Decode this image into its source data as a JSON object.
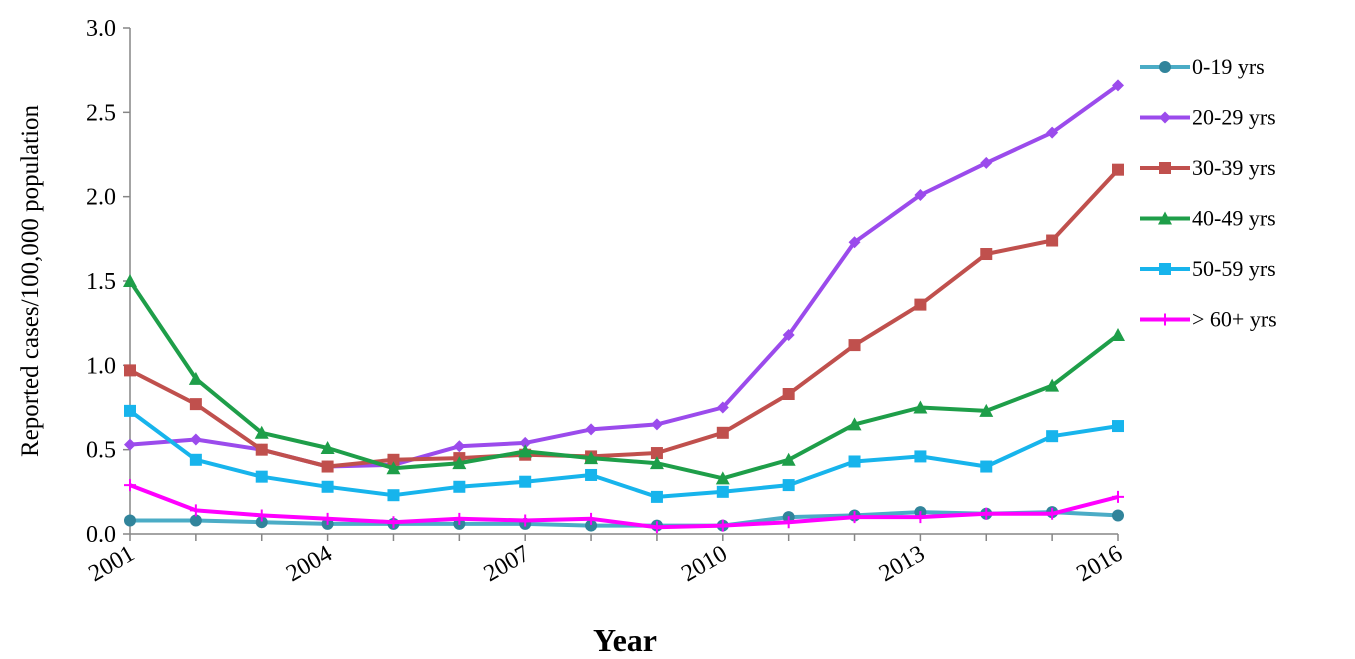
{
  "chart_data": {
    "type": "line",
    "xlabel": "Year",
    "ylabel": "Reported cases/100,000 population",
    "ylim": [
      0,
      3.0
    ],
    "yticks": [
      "0.0",
      "0.5",
      "1.0",
      "1.5",
      "2.0",
      "2.5",
      "3.0"
    ],
    "yticks_values": [
      0,
      0.5,
      1.0,
      1.5,
      2.0,
      2.5,
      3.0
    ],
    "xticks": [
      "2001",
      "2004",
      "2007",
      "2010",
      "2013",
      "2016"
    ],
    "xticks_values": [
      2001,
      2004,
      2007,
      2010,
      2013,
      2016
    ],
    "x": [
      2001,
      2002,
      2003,
      2004,
      2005,
      2006,
      2007,
      2008,
      2009,
      2010,
      2011,
      2012,
      2013,
      2014,
      2015,
      2016
    ],
    "grid": false,
    "legend_position": "right",
    "series": [
      {
        "name": "0-19 yrs",
        "color": "#4bacc6",
        "markerColor": "#31849b",
        "marker": "circle",
        "values": [
          0.08,
          0.08,
          0.07,
          0.06,
          0.06,
          0.06,
          0.06,
          0.05,
          0.05,
          0.05,
          0.1,
          0.11,
          0.13,
          0.12,
          0.13,
          0.11
        ]
      },
      {
        "name": "20-29 yrs",
        "color": "#9b4bec",
        "markerColor": "#9b4bec",
        "marker": "diamond",
        "values": [
          0.53,
          0.56,
          0.5,
          0.4,
          0.41,
          0.52,
          0.54,
          0.62,
          0.65,
          0.75,
          1.18,
          1.73,
          2.01,
          2.2,
          2.38,
          2.66
        ]
      },
      {
        "name": "30-39 yrs",
        "color": "#c0504d",
        "markerColor": "#c0504d",
        "marker": "square",
        "values": [
          0.97,
          0.77,
          0.5,
          0.4,
          0.44,
          0.45,
          0.47,
          0.46,
          0.48,
          0.6,
          0.83,
          1.12,
          1.36,
          1.66,
          1.74,
          2.16
        ]
      },
      {
        "name": "40-49 yrs",
        "color": "#1e9e49",
        "markerColor": "#1e9e49",
        "marker": "triangle",
        "values": [
          1.5,
          0.92,
          0.6,
          0.51,
          0.39,
          0.42,
          0.49,
          0.45,
          0.42,
          0.33,
          0.44,
          0.65,
          0.75,
          0.73,
          0.88,
          1.18
        ]
      },
      {
        "name": "50-59 yrs",
        "color": "#17b4ec",
        "markerColor": "#17b4ec",
        "marker": "square",
        "values": [
          0.73,
          0.44,
          0.34,
          0.28,
          0.23,
          0.28,
          0.31,
          0.35,
          0.22,
          0.25,
          0.29,
          0.43,
          0.46,
          0.4,
          0.58,
          0.64
        ]
      },
      {
        "name": "> 60+ yrs",
        "color": "#ff00ff",
        "markerColor": "#ff00ff",
        "marker": "plus",
        "values": [
          0.29,
          0.14,
          0.11,
          0.09,
          0.07,
          0.09,
          0.08,
          0.09,
          0.04,
          0.05,
          0.07,
          0.1,
          0.1,
          0.12,
          0.12,
          0.22
        ]
      }
    ]
  }
}
